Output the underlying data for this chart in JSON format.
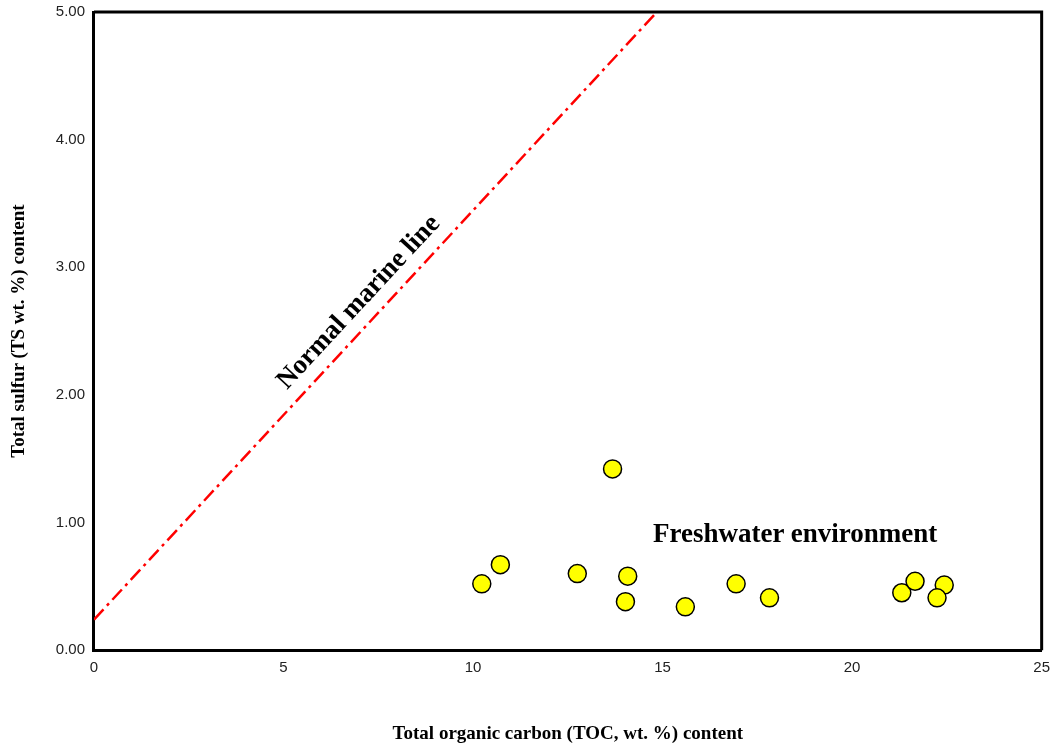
{
  "chart_data": {
    "type": "scatter",
    "xlabel": "Total organic carbon (TOC, wt. %) content",
    "ylabel": "Total sulfur (TS wt. %) content",
    "xlim": [
      0,
      25
    ],
    "xticks": [
      0,
      5,
      10,
      15,
      20,
      25
    ],
    "ylim": [
      0,
      5
    ],
    "yticks": [
      {
        "value": 0,
        "label": "0.00"
      },
      {
        "value": 1,
        "label": "1.00"
      },
      {
        "value": 2,
        "label": "2.00"
      },
      {
        "value": 3,
        "label": "3.00"
      },
      {
        "value": 4,
        "label": "4.00"
      },
      {
        "value": 5,
        "label": "5.00"
      }
    ],
    "grid": false,
    "legend": false,
    "marker": "circle",
    "series": [
      {
        "type": "line",
        "color": "#ff0000",
        "line_style": "dashed",
        "marker": "none",
        "x": [
          0,
          14.85
        ],
        "values": [
          0.24,
          5.0
        ]
      },
      {
        "color": "#ffff00",
        "x": [
          10.23,
          10.72,
          12.75,
          13.68,
          14.08,
          14.02,
          15.6,
          16.94,
          17.82,
          21.31,
          21.66,
          22.43,
          22.24
        ],
        "values": [
          0.52,
          0.67,
          0.6,
          1.42,
          0.58,
          0.38,
          0.34,
          0.52,
          0.41,
          0.45,
          0.54,
          0.51,
          0.41
        ]
      }
    ],
    "annotations": [
      {
        "text": "Normal marine line",
        "x": 7.4,
        "y": 2.61
      },
      "Freshwater environment"
    ]
  }
}
